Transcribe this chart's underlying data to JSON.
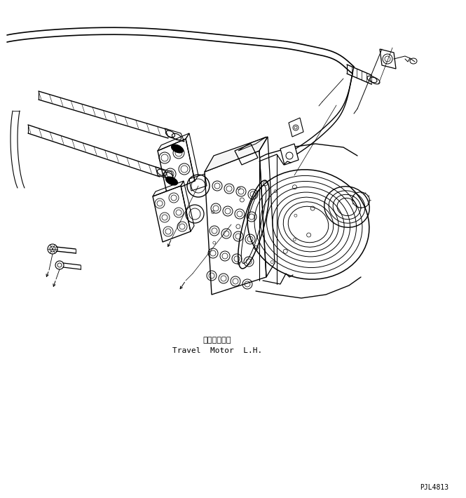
{
  "label_japanese": "走行モータ左",
  "label_english": "Travel  Motor  L.H.",
  "part_id": "PJL4813",
  "bg_color": "#ffffff",
  "line_color": "#000000",
  "fontsize_jp": 8,
  "fontsize_en": 8,
  "fontsize_id": 7
}
